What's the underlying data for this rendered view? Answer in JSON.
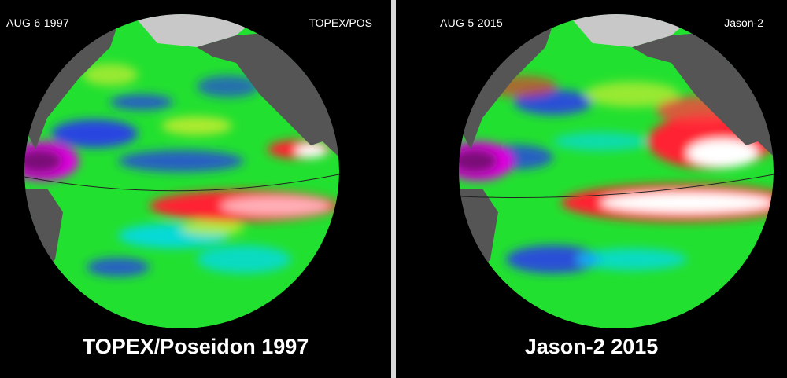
{
  "left_panel": {
    "date": "AUG  6  1997",
    "mission": "TOPEX/POS",
    "caption": "TOPEX/Poseidon 1997"
  },
  "right_panel": {
    "date": "AUG  5  2015",
    "mission": "Jason-2",
    "caption": "Jason-2 2015"
  },
  "colors": {
    "background": "#000000",
    "land": "#555555",
    "ice": "#c8c8c8",
    "divider": "#d9d9d9",
    "high_anomaly": "#ffffff",
    "red": "#ff2030",
    "yellow": "#e8f030",
    "green": "#22e030",
    "cyan": "#00d8ff",
    "blue": "#2a2aff",
    "purple": "#7a0a78",
    "magenta": "#e000e0"
  }
}
